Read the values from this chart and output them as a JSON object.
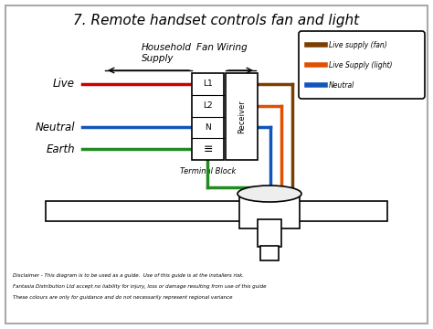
{
  "title": "7. Remote handset controls fan and light",
  "title_fontsize": 11,
  "background_color": "#ffffff",
  "border_color": "#aaaaaa",
  "label_live": "Live",
  "label_neutral": "Neutral",
  "label_earth": "Earth",
  "label_terminal": "Terminal Block",
  "label_receiver": "Receiver",
  "label_household": "Household",
  "label_supply": "Supply",
  "label_fan_wiring": "Fan Wiring",
  "legend_items": [
    {
      "label": "Live supply (fan)",
      "color": "#7B3F00"
    },
    {
      "label": "Live Supply (light)",
      "color": "#E05000"
    },
    {
      "label": "Neutral",
      "color": "#1155BB"
    }
  ],
  "wire_red_color": "#CC0000",
  "wire_blue_color": "#1155BB",
  "wire_green_color": "#228B22",
  "wire_brown_color": "#7B3F00",
  "wire_orange_color": "#E05000",
  "wire_blue2_color": "#1155BB",
  "disclaimer1": "Disclaimer - This diagram is to be used as a guide.  Use of this guide is at the installers risk.",
  "disclaimer2": "Fantasia Distribution Ltd accept no liability for injury, loss or damage resulting from use of this guide",
  "disclaimer3": "These colours are only for guidance and do not necessarily represent regional variance"
}
